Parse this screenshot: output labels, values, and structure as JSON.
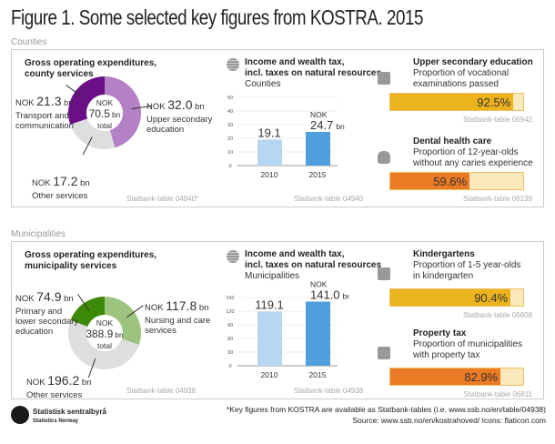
{
  "title": "Figure 1. Some selected key figures from KOSTRA. 2015",
  "colors": {
    "yellow": "#ebb31e",
    "orange": "#eb7a25",
    "bar_light": "#b6d7f2",
    "bar_dark": "#4f9fdf"
  },
  "counties": {
    "label": "Counties",
    "donut": {
      "title1": "Gross operating expenditures,",
      "title2": "county services",
      "center": [
        "NOK",
        "70.5",
        "bn",
        "total"
      ],
      "slices": [
        {
          "value": 32.0,
          "prefix": "NOK",
          "num": "32.0",
          "unit": "bn",
          "name1": "Upper secondary",
          "name2": "education",
          "color": "#b581c6"
        },
        {
          "value": 17.2,
          "prefix": "NOK",
          "num": "17.2",
          "unit": "bn",
          "name1": "Other services",
          "name2": "",
          "color": "#dedede"
        },
        {
          "value": 21.3,
          "prefix": "NOK",
          "num": "21.3",
          "unit": "bn",
          "name1": "Transport and",
          "name2": "communication",
          "color": "#6b0f86"
        }
      ],
      "source": "Statbank-table 04940*"
    },
    "bars": {
      "title1": "Income and wealth tax,",
      "title2": "incl. taxes on natural resources",
      "sub": "Counties",
      "icon": "coins-icon",
      "ticks": [
        "0",
        "10",
        "20",
        "30",
        "40",
        "50"
      ],
      "ymax": 50,
      "categories": [
        "2010",
        "2015"
      ],
      "values": [
        19.1,
        24.7
      ],
      "labels": [
        "19.1",
        "24.7"
      ],
      "nok": "NOK",
      "unit": "bn",
      "source": "Statbank-table 04940"
    },
    "kpi": [
      {
        "icon": "certificate-icon",
        "title": "Upper secondary education",
        "sub1": "Proportion of vocational",
        "sub2": "examinations passed",
        "value": 92.5,
        "text": "92.5%",
        "color": "yellow",
        "source": "Statbank-table 06942"
      },
      {
        "icon": "tooth-icon",
        "title": "Dental health care",
        "sub1": "Proportion of 12-year-olds",
        "sub2": "without any caries experience",
        "value": 59.6,
        "text": "59.6%",
        "color": "orange",
        "source": "Statbank-table 06139"
      }
    ]
  },
  "municipalities": {
    "label": "Municipalities",
    "donut": {
      "title1": "Gross operating expenditures,",
      "title2": "municipality services",
      "center": [
        "NOK",
        "388.9",
        "bn",
        "total"
      ],
      "slices": [
        {
          "value": 117.8,
          "prefix": "NOK",
          "num": "117.8",
          "unit": "bn",
          "name1": "Nursing and care",
          "name2": "services",
          "color": "#9cc47f"
        },
        {
          "value": 196.2,
          "prefix": "NOK",
          "num": "196.2",
          "unit": "bn",
          "name1": "Other services",
          "name2": "",
          "color": "#dedede"
        },
        {
          "value": 74.9,
          "prefix": "NOK",
          "num": "74.9",
          "unit": "bn",
          "name1": "Primary and",
          "name2": "lower secondary",
          "name3": "education",
          "color": "#3c8a08"
        }
      ],
      "source": "Statbank-table 04938"
    },
    "bars": {
      "title1": "Income and wealth tax,",
      "title2": "incl. taxes on natural resources",
      "sub": "Municipalities",
      "icon": "coins-icon",
      "ticks": [
        "0",
        "30",
        "60",
        "90",
        "120",
        "150"
      ],
      "ymax": 150,
      "categories": [
        "2010",
        "2015"
      ],
      "values": [
        119.1,
        141.0
      ],
      "labels": [
        "119.1",
        "141.0"
      ],
      "nok": "NOK",
      "unit": "bn",
      "source": "Statbank-table 04938"
    },
    "kpi": [
      {
        "icon": "kindergarten-icon",
        "title": "Kindergartens",
        "sub1": "Proportion of 1-5 year-olds",
        "sub2": "in kindergarten",
        "value": 90.4,
        "text": "90.4%",
        "color": "yellow",
        "source": "Statbank-table 06808"
      },
      {
        "icon": "house-icon",
        "title": "Property tax",
        "sub1": "Proportion of municipalities",
        "sub2": "with property tax",
        "value": 82.9,
        "text": "82.9%",
        "color": "orange",
        "source": "Statbank-table 06811"
      }
    ]
  },
  "footer": {
    "logo1": "Statistisk sentralbyrå",
    "logo2": "Statistics Norway",
    "note": "*Key figures from KOSTRA are available as Statbank-tables (i.e. www.ssb.no/en/table/04938)",
    "source": "Source: www.ssb.no/en/kostrahoved/  Icons: flaticon.com"
  },
  "chart_data": [
    {
      "type": "pie",
      "title": "Gross operating expenditures, county services",
      "categories": [
        "Upper secondary education",
        "Other services",
        "Transport and communication"
      ],
      "values": [
        32.0,
        17.2,
        21.3
      ],
      "total": 70.5,
      "unit": "NOK bn"
    },
    {
      "type": "bar",
      "title": "Income and wealth tax, incl. taxes on natural resources",
      "subtitle": "Counties",
      "categories": [
        "2010",
        "2015"
      ],
      "values": [
        19.1,
        24.7
      ],
      "ylim": [
        0,
        50
      ],
      "unit": "NOK bn"
    },
    {
      "type": "bar",
      "title": "Upper secondary education",
      "subtitle": "Proportion of vocational examinations passed",
      "values": [
        92.5
      ],
      "unit": "%"
    },
    {
      "type": "bar",
      "title": "Dental health care",
      "subtitle": "Proportion of 12-year-olds without any caries experience",
      "values": [
        59.6
      ],
      "unit": "%"
    },
    {
      "type": "pie",
      "title": "Gross operating expenditures, municipality services",
      "categories": [
        "Nursing and care services",
        "Other services",
        "Primary and lower secondary education"
      ],
      "values": [
        117.8,
        196.2,
        74.9
      ],
      "total": 388.9,
      "unit": "NOK bn"
    },
    {
      "type": "bar",
      "title": "Income and wealth tax, incl. taxes on natural resources",
      "subtitle": "Municipalities",
      "categories": [
        "2010",
        "2015"
      ],
      "values": [
        119.1,
        141.0
      ],
      "ylim": [
        0,
        150
      ],
      "unit": "NOK bn"
    },
    {
      "type": "bar",
      "title": "Kindergartens",
      "subtitle": "Proportion of 1-5 year-olds in kindergarten",
      "values": [
        90.4
      ],
      "unit": "%"
    },
    {
      "type": "bar",
      "title": "Property tax",
      "subtitle": "Proportion of municipalities with property tax",
      "values": [
        82.9
      ],
      "unit": "%"
    }
  ]
}
